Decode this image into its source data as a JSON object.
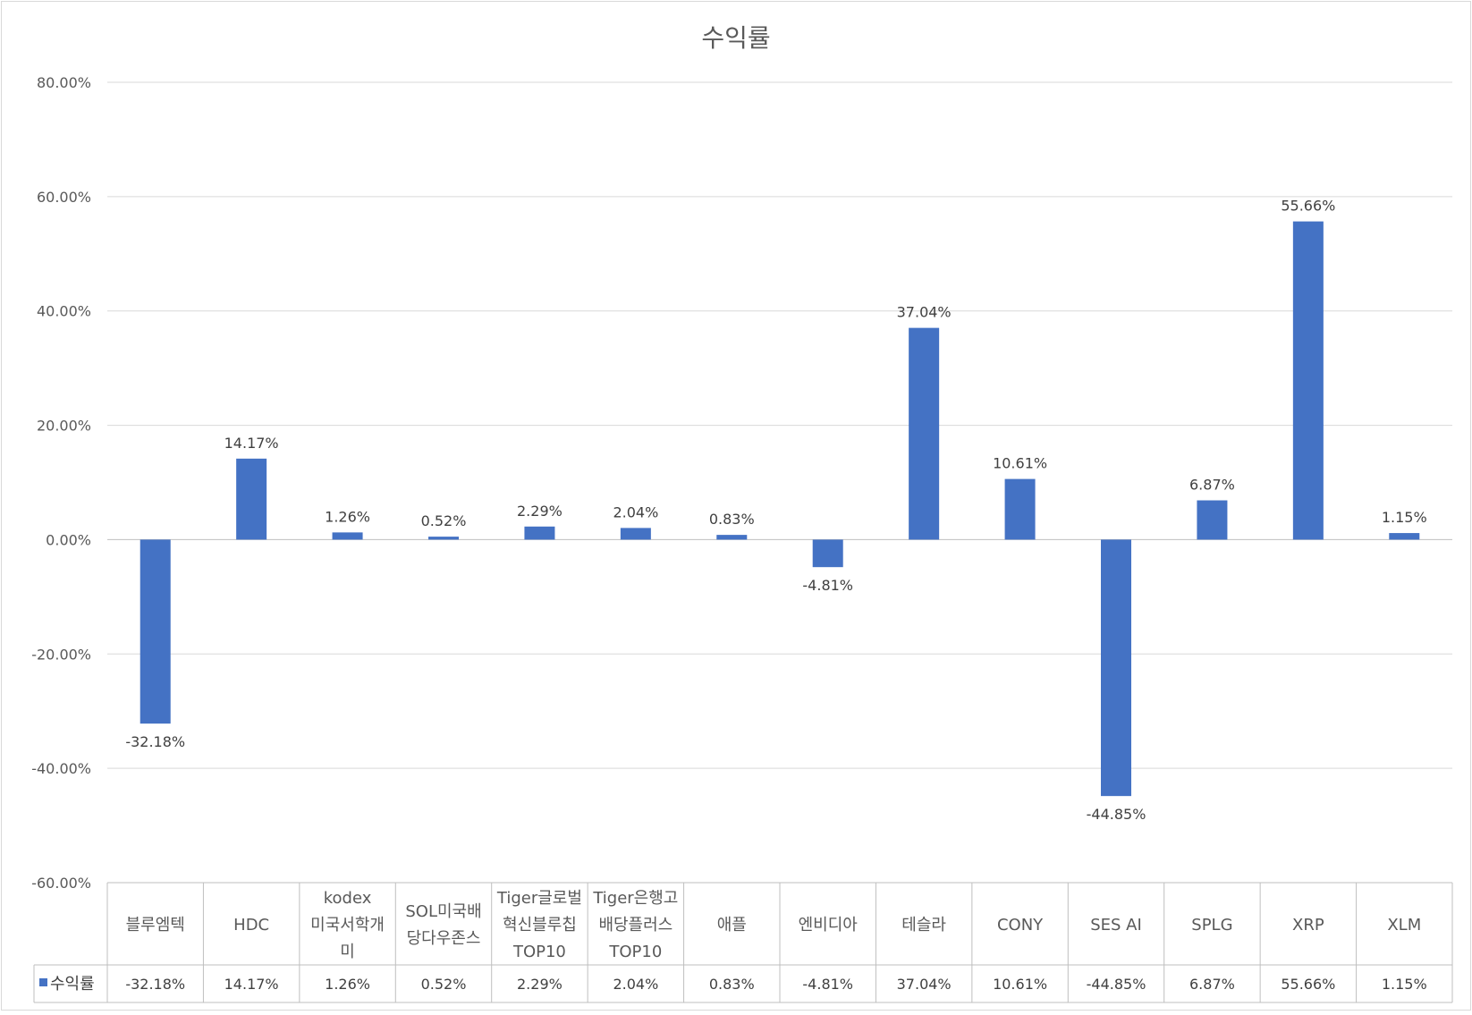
{
  "chart_data": {
    "type": "bar",
    "title": "수익률",
    "xlabel": "",
    "ylabel": "",
    "ylim": [
      -0.6,
      0.8
    ],
    "yticks": [
      "80.00%",
      "60.00%",
      "40.00%",
      "20.00%",
      "0.00%",
      "-20.00%",
      "-40.00%",
      "-60.00%"
    ],
    "ytick_values": [
      0.8,
      0.6,
      0.4,
      0.2,
      0.0,
      -0.2,
      -0.4,
      -0.6
    ],
    "grid": true,
    "legend": "data-table",
    "categories": [
      [
        "블루엠텍"
      ],
      [
        "HDC"
      ],
      [
        "kodex",
        "미국서학개",
        "미"
      ],
      [
        "SOL미국배",
        "당다우존스"
      ],
      [
        "Tiger글로벌",
        "혁신블루칩",
        "TOP10"
      ],
      [
        "Tiger은행고",
        "배당플러스",
        "TOP10"
      ],
      [
        "애플"
      ],
      [
        "엔비디아"
      ],
      [
        "테슬라"
      ],
      [
        "CONY"
      ],
      [
        "SES AI"
      ],
      [
        "SPLG"
      ],
      [
        "XRP"
      ],
      [
        "XLM"
      ]
    ],
    "series": [
      {
        "name": "수익률",
        "color": "#4472C4",
        "values": [
          -0.3218,
          0.1417,
          0.0126,
          0.0052,
          0.0229,
          0.0204,
          0.0083,
          -0.0481,
          0.3704,
          0.1061,
          -0.4485,
          0.0687,
          0.5566,
          0.0115
        ],
        "labels": [
          "-32.18%",
          "14.17%",
          "1.26%",
          "0.52%",
          "2.29%",
          "2.04%",
          "0.83%",
          "-4.81%",
          "37.04%",
          "10.61%",
          "-44.85%",
          "6.87%",
          "55.66%",
          "1.15%"
        ]
      }
    ]
  }
}
